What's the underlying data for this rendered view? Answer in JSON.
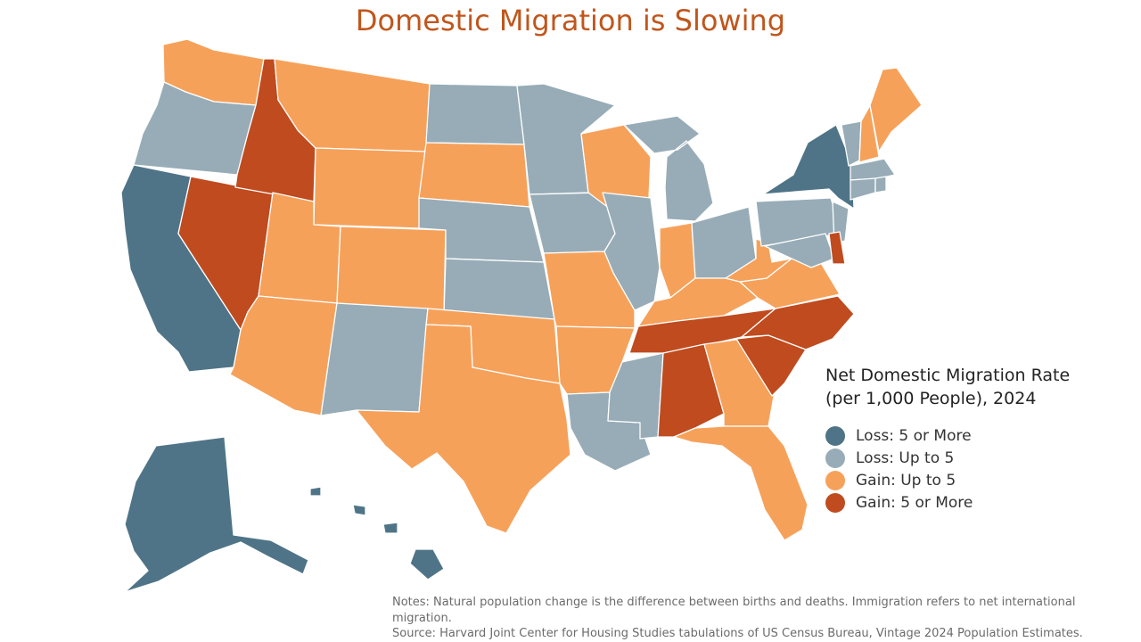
{
  "title": "Domestic Migration is Slowing",
  "colors": {
    "loss5": "#4f7487",
    "loss": "#97acb7",
    "gain": "#f6a15a",
    "gain5": "#bf4b1f",
    "title": "#c0561c"
  },
  "legend": {
    "title_line1": "Net Domestic Migration Rate",
    "title_line2": "(per 1,000 People), 2024",
    "items": [
      {
        "label": "Loss: 5 or More",
        "color": "#4f7487"
      },
      {
        "label": "Loss: Up to 5",
        "color": "#97acb7"
      },
      {
        "label": "Gain: Up to 5",
        "color": "#f6a15a"
      },
      {
        "label": "Gain: 5 or More",
        "color": "#bf4b1f"
      }
    ]
  },
  "states": {
    "WA": "gain",
    "OR": "loss",
    "CA": "loss5",
    "NV": "gain5",
    "ID": "gain5",
    "MT": "gain",
    "WY": "gain",
    "UT": "gain",
    "AZ": "gain",
    "CO": "gain",
    "NM": "loss",
    "ND": "loss",
    "SD": "gain",
    "NE": "loss",
    "KS": "loss",
    "OK": "gain",
    "TX": "gain",
    "MN": "loss",
    "IA": "loss",
    "MO": "gain",
    "AR": "gain",
    "LA": "loss",
    "WI": "gain",
    "IL": "loss",
    "MS": "loss",
    "MI": "loss",
    "IN": "gain",
    "KY": "gain",
    "TN": "gain5",
    "AL": "gain5",
    "OH": "loss",
    "GA": "gain",
    "FL": "gain",
    "SC": "gain5",
    "NC": "gain5",
    "VA": "gain",
    "WV": "gain",
    "PA": "loss",
    "NY": "loss5",
    "NJ": "loss",
    "DE": "gain5",
    "MD": "loss",
    "ME": "gain",
    "NH": "gain",
    "VT": "loss",
    "MA": "loss",
    "CT": "loss",
    "RI": "loss",
    "AK": "loss5",
    "HI": "loss5"
  },
  "notes": {
    "line1": "Notes: Natural population change is the difference between births and deaths. Immigration refers to net international migration.",
    "line2": "Source: Harvard Joint Center for Housing Studies tabulations of US Census Bureau, Vintage 2024 Population Estimates."
  }
}
